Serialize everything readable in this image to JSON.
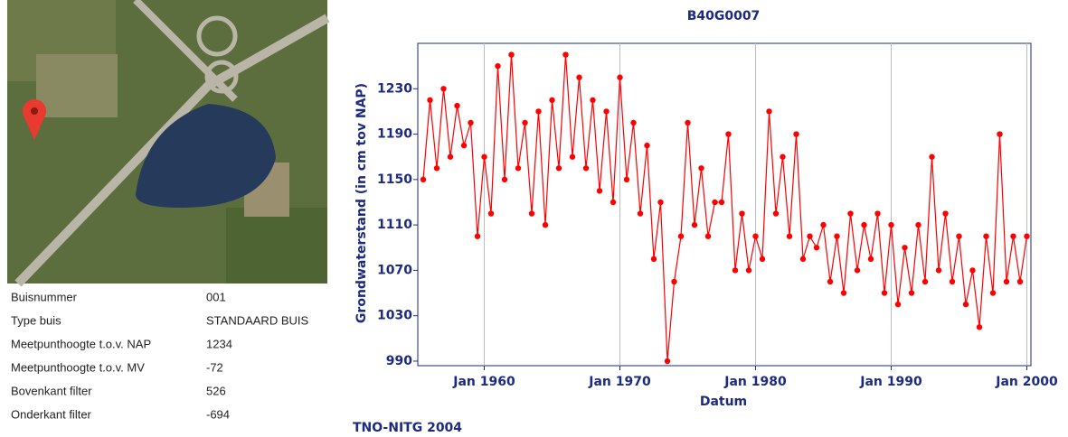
{
  "table": {
    "rows": [
      [
        "Buisnummer",
        "001"
      ],
      [
        "Type buis",
        "STANDAARD BUIS"
      ],
      [
        "Meetpunthoogte t.o.v. NAP",
        "1234"
      ],
      [
        "Meetpunthoogte t.o.v. MV",
        "-72"
      ],
      [
        "Bovenkant filter",
        "526"
      ],
      [
        "Onderkant filter",
        "-694"
      ]
    ]
  },
  "footer": "TNO-NITG 2004",
  "chart_data": {
    "type": "line",
    "title": "B40G0007",
    "x_label": "Datum",
    "y_label": "Grondwaterstand (in cm tov NAP)",
    "color": "#ff0000",
    "grid": true,
    "xlim": [
      1955.1,
      2000.3
    ],
    "xticks": [
      {
        "value": 1960,
        "label": "Jan 1960"
      },
      {
        "value": 1970,
        "label": "Jan 1970"
      },
      {
        "value": 1980,
        "label": "Jan 1980"
      },
      {
        "value": 1990,
        "label": "Jan 1990"
      },
      {
        "value": 2000,
        "label": "Jan 2000"
      }
    ],
    "ylim": [
      986,
      1270
    ],
    "yticks": [
      990,
      1030,
      1070,
      1110,
      1150,
      1190,
      1230
    ],
    "x": [
      1955.5,
      1956,
      1956.5,
      1957,
      1957.5,
      1958,
      1958.5,
      1959,
      1959.5,
      1960,
      1960.5,
      1961,
      1961.5,
      1962,
      1962.5,
      1963,
      1963.5,
      1964,
      1964.5,
      1965,
      1965.5,
      1966,
      1966.5,
      1967,
      1967.5,
      1968,
      1968.5,
      1969,
      1969.5,
      1970,
      1970.5,
      1971,
      1971.5,
      1972,
      1972.5,
      1973,
      1973.5,
      1974,
      1974.5,
      1975,
      1975.5,
      1976,
      1976.5,
      1977,
      1977.5,
      1978,
      1978.5,
      1979,
      1979.5,
      1980,
      1980.5,
      1981,
      1981.5,
      1982,
      1982.5,
      1983,
      1983.5,
      1984,
      1984.5,
      1985,
      1985.5,
      1986,
      1986.5,
      1987,
      1987.5,
      1988,
      1988.5,
      1989,
      1989.5,
      1990,
      1990.5,
      1991,
      1991.5,
      1992,
      1992.5,
      1993,
      1993.5,
      1994,
      1994.5,
      1995,
      1995.5,
      1996,
      1996.5,
      1997,
      1997.5,
      1998,
      1998.5,
      1999,
      1999.5,
      2000
    ],
    "values": [
      1150,
      1220,
      1160,
      1230,
      1170,
      1215,
      1180,
      1200,
      1100,
      1170,
      1120,
      1250,
      1150,
      1260,
      1160,
      1200,
      1120,
      1210,
      1110,
      1220,
      1160,
      1260,
      1170,
      1240,
      1160,
      1220,
      1140,
      1210,
      1130,
      1240,
      1150,
      1200,
      1120,
      1180,
      1080,
      1130,
      990,
      1060,
      1100,
      1200,
      1110,
      1160,
      1100,
      1130,
      1130,
      1190,
      1070,
      1120,
      1070,
      1100,
      1080,
      1210,
      1120,
      1170,
      1100,
      1190,
      1080,
      1100,
      1090,
      1110,
      1060,
      1100,
      1050,
      1120,
      1070,
      1110,
      1080,
      1120,
      1050,
      1110,
      1040,
      1090,
      1050,
      1110,
      1060,
      1170,
      1070,
      1120,
      1060,
      1100,
      1040,
      1070,
      1020,
      1100,
      1050,
      1190,
      1060,
      1100,
      1060,
      1100
    ]
  }
}
